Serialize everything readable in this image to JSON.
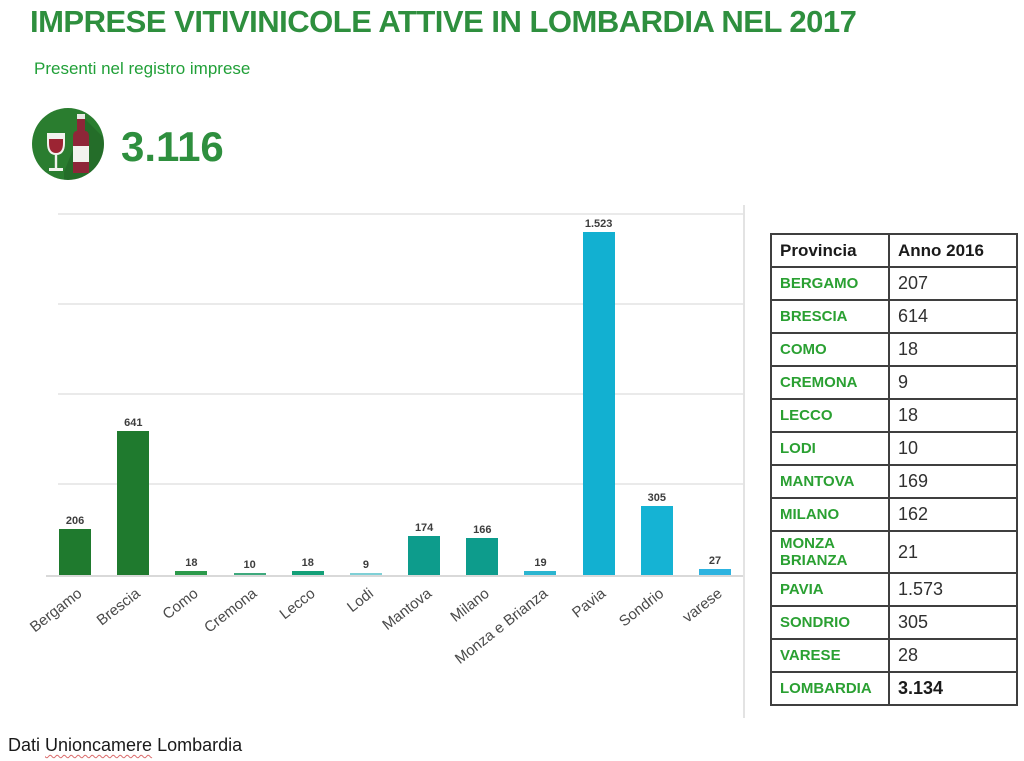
{
  "header": {
    "title": "IMPRESE VITIVINICOLE ATTIVE IN LOMBARDIA NEL 2017",
    "subtitle": "Presenti nel registro imprese"
  },
  "kpi": {
    "icon": "wine-bottle-and-glass-icon",
    "value": "3.116"
  },
  "chart_data": {
    "type": "bar",
    "title": "",
    "xlabel": "",
    "ylabel": "",
    "categories": [
      "Bergamo",
      "Brescia",
      "Como",
      "Cremona",
      "Lecco",
      "Lodi",
      "Mantova",
      "Milano",
      "Monza e Brianza",
      "Pavia",
      "Sondrio",
      "varese"
    ],
    "values": [
      206,
      641,
      18,
      10,
      18,
      9,
      174,
      166,
      19,
      1523,
      305,
      27
    ],
    "value_labels": [
      "206",
      "641",
      "18",
      "10",
      "18",
      "9",
      "174",
      "166",
      "19",
      "1.523",
      "305",
      "27"
    ],
    "bar_colors": [
      "#1f7a2e",
      "#1f7a2e",
      "#2c9a4b",
      "#3fa97d",
      "#14a078",
      "#7fd0d6",
      "#0d9c8c",
      "#0d9c8c",
      "#2bb5d0",
      "#12b0d1",
      "#15b3d4",
      "#2db3e0"
    ],
    "ylim": [
      0,
      1640
    ],
    "grid": true,
    "gridline_interval": 400,
    "legend": "none"
  },
  "table": {
    "columns": [
      "Provincia",
      "Anno 2016"
    ],
    "rows": [
      [
        "BERGAMO",
        "207"
      ],
      [
        "BRESCIA",
        "614"
      ],
      [
        "COMO",
        "18"
      ],
      [
        "CREMONA",
        "9"
      ],
      [
        "LECCO",
        "18"
      ],
      [
        "LODI",
        "10"
      ],
      [
        "MANTOVA",
        "169"
      ],
      [
        "MILANO",
        "162"
      ],
      [
        "MONZA BRIANZA",
        "21"
      ],
      [
        "PAVIA",
        "1.573"
      ],
      [
        "SONDRIO",
        "305"
      ],
      [
        "VARESE",
        "28"
      ],
      [
        "LOMBARDIA",
        "3.134"
      ]
    ],
    "total_row_label": "LOMBARDIA"
  },
  "footer": {
    "prefix": "Dati ",
    "underlined": "Unioncamere",
    "suffix": " Lombardia"
  },
  "colors": {
    "title_green": "#2e8f3e",
    "subtitle_green": "#21a038",
    "kpi_green": "#2e8f3e",
    "table_province_green": "#2aa032",
    "icon_circle_green": "#2a7d2f",
    "wine_red": "#8e2638",
    "gridline_gray": "#eaeaea",
    "axis_gray": "#d9d9d9",
    "value_label_dark": "#3d3d3d",
    "footer_underline_red": "#d96a6a"
  }
}
